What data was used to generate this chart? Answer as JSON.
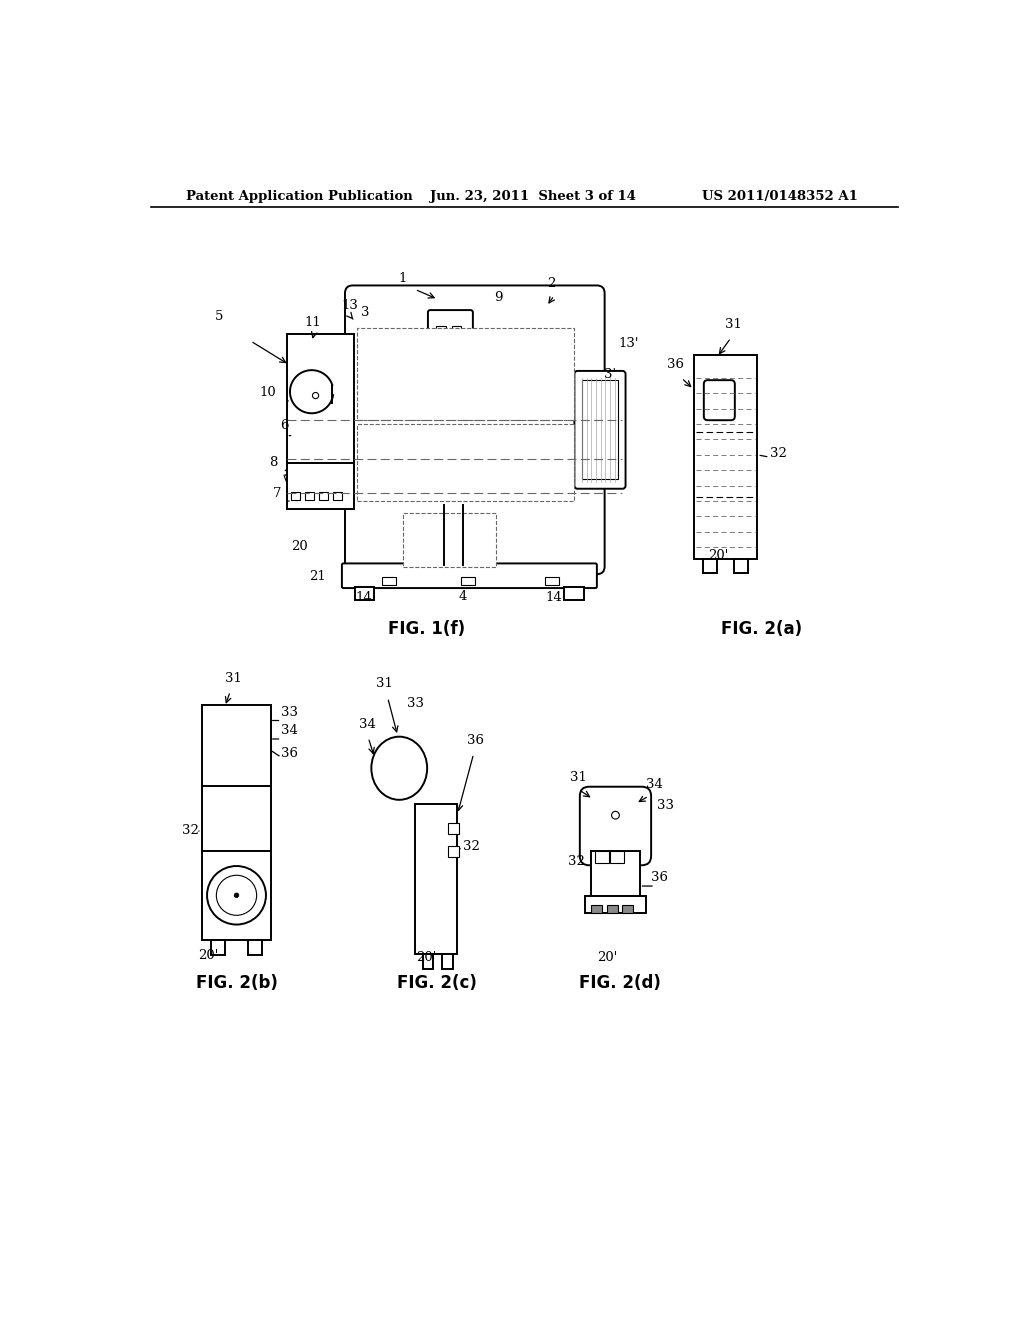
{
  "bg_color": "#ffffff",
  "header_left": "Patent Application Publication",
  "header_center": "Jun. 23, 2011  Sheet 3 of 14",
  "header_right": "US 2011/0148352 A1",
  "fig1f_label": "FIG. 1(f)",
  "fig2a_label": "FIG. 2(a)",
  "fig2b_label": "FIG. 2(b)",
  "fig2c_label": "FIG. 2(c)",
  "fig2d_label": "FIG. 2(d)",
  "line_color": "#000000",
  "dash_color": "#666666"
}
